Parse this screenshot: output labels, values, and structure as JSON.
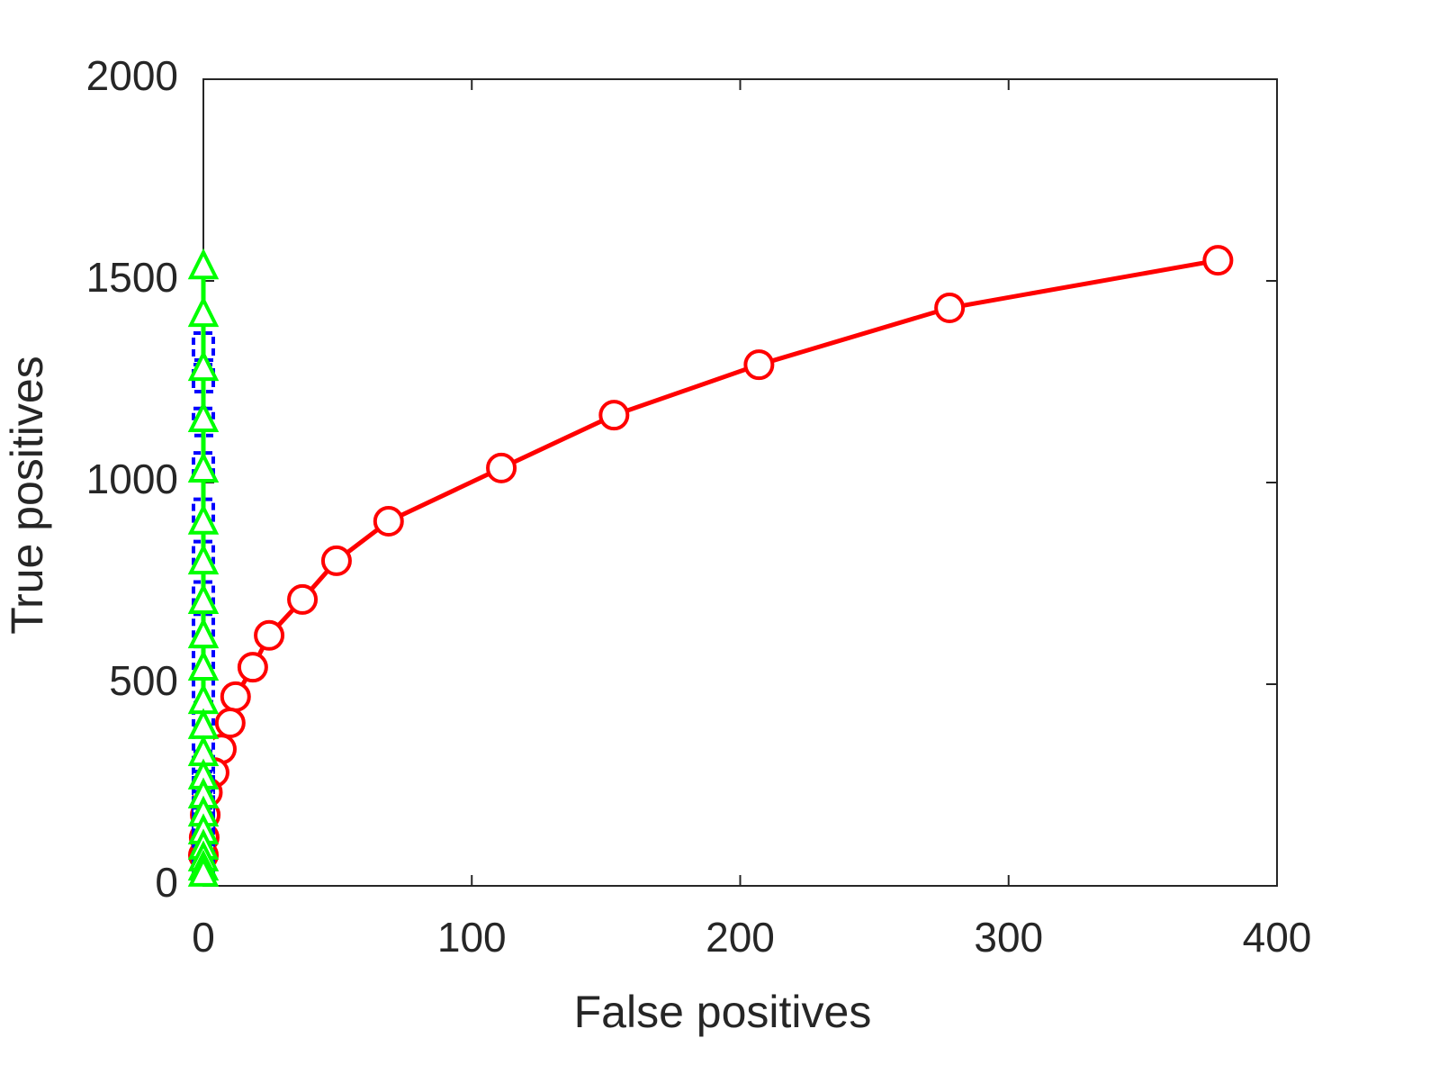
{
  "chart_data": {
    "type": "line",
    "x_label": "False positives",
    "y_label": "True positives",
    "xlim": [
      0,
      400
    ],
    "ylim": [
      0,
      2000
    ],
    "xticks": [
      0,
      100,
      200,
      300,
      400
    ],
    "yticks": [
      0,
      500,
      1000,
      1500,
      2000
    ],
    "grid": false,
    "series": [
      {
        "color": "#ff0000",
        "marker": "circle",
        "dash": "solid",
        "x": [
          378,
          278,
          207,
          153,
          111,
          69,
          49.6,
          36.9,
          24.5,
          18.4,
          12,
          10,
          6.7,
          4,
          1.5,
          0.7,
          0.3,
          0
        ],
        "values": [
          1551,
          1433,
          1292,
          1167,
          1036,
          904,
          806,
          710,
          621,
          542,
          469,
          404,
          339,
          281,
          232,
          176,
          120,
          76
        ]
      },
      {
        "color": "#0000ff",
        "marker": "square",
        "dash": "dashed",
        "x": [
          0,
          0,
          0,
          0,
          0,
          0,
          0,
          0,
          0,
          0,
          0,
          0,
          0,
          0,
          0,
          0,
          0,
          0,
          0,
          0
        ],
        "values": [
          1337,
          1259,
          1150,
          1040,
          925,
          820,
          720,
          640,
          560,
          490,
          420,
          360,
          300,
          250,
          200,
          160,
          120,
          90,
          65,
          45
        ]
      },
      {
        "color": "#00ff00",
        "marker": "triangle",
        "dash": "solid",
        "x": [
          0,
          0,
          0,
          0,
          0,
          0,
          0,
          0,
          0,
          0,
          0,
          0,
          0,
          0,
          0,
          0,
          0,
          0,
          0,
          0,
          0
        ],
        "values": [
          1533,
          1415,
          1281,
          1154,
          1029,
          900,
          801,
          703,
          618,
          538,
          455,
          393,
          326,
          268,
          221,
          176,
          132,
          94,
          65,
          42,
          27
        ]
      }
    ]
  }
}
